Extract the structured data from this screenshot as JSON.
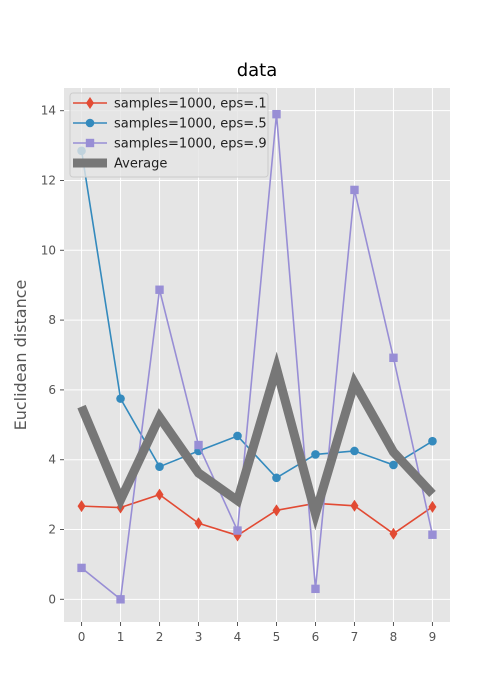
{
  "chart_data": {
    "type": "line",
    "title": "data",
    "xlabel": "",
    "ylabel": "Euclidean distance",
    "x": [
      0,
      1,
      2,
      3,
      4,
      5,
      6,
      7,
      8,
      9
    ],
    "xlim": [
      -0.45,
      9.45
    ],
    "ylim": [
      -0.65,
      14.65
    ],
    "x_ticks": [
      "0",
      "1",
      "2",
      "3",
      "4",
      "5",
      "6",
      "7",
      "8",
      "9"
    ],
    "y_ticks": [
      "0",
      "2",
      "4",
      "6",
      "8",
      "10",
      "12",
      "14"
    ],
    "grid": true,
    "legend_position": "top-left",
    "series": [
      {
        "name": "samples=1000, eps=.1",
        "color": "#e24a33",
        "marker": "diamond",
        "values": [
          2.67,
          2.63,
          3.0,
          2.18,
          1.83,
          2.55,
          2.75,
          2.68,
          1.88,
          2.65
        ]
      },
      {
        "name": "samples=1000, eps=.5",
        "color": "#348abd",
        "marker": "circle",
        "values": [
          12.85,
          5.75,
          3.8,
          4.25,
          4.68,
          3.48,
          4.15,
          4.25,
          3.85,
          4.53
        ]
      },
      {
        "name": "samples=1000, eps=.9",
        "color": "#988ed5",
        "marker": "square",
        "values": [
          0.9,
          0.0,
          8.87,
          4.42,
          1.97,
          13.9,
          0.3,
          11.73,
          6.92,
          1.85
        ]
      },
      {
        "name": "Average",
        "color": "#777777",
        "marker": "none",
        "values": [
          5.52,
          2.85,
          5.22,
          3.62,
          2.83,
          6.62,
          2.45,
          6.2,
          4.22,
          3.02
        ]
      }
    ]
  }
}
